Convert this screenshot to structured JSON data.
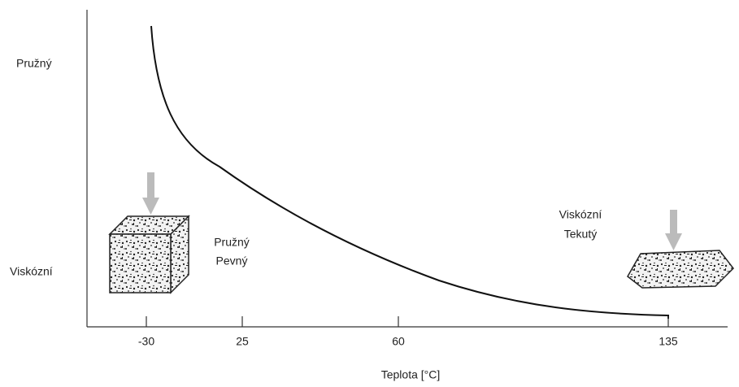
{
  "y_axis": {
    "top_label": "Pružný",
    "bottom_label": "Viskózní"
  },
  "x_axis": {
    "title": "Teplota [°C]",
    "ticks": [
      "-30",
      "25",
      "60",
      "135"
    ]
  },
  "annotations": {
    "solid": [
      "Pružný",
      "Pevný"
    ],
    "liquid": [
      "Viskózní",
      "Tekutý"
    ]
  }
}
